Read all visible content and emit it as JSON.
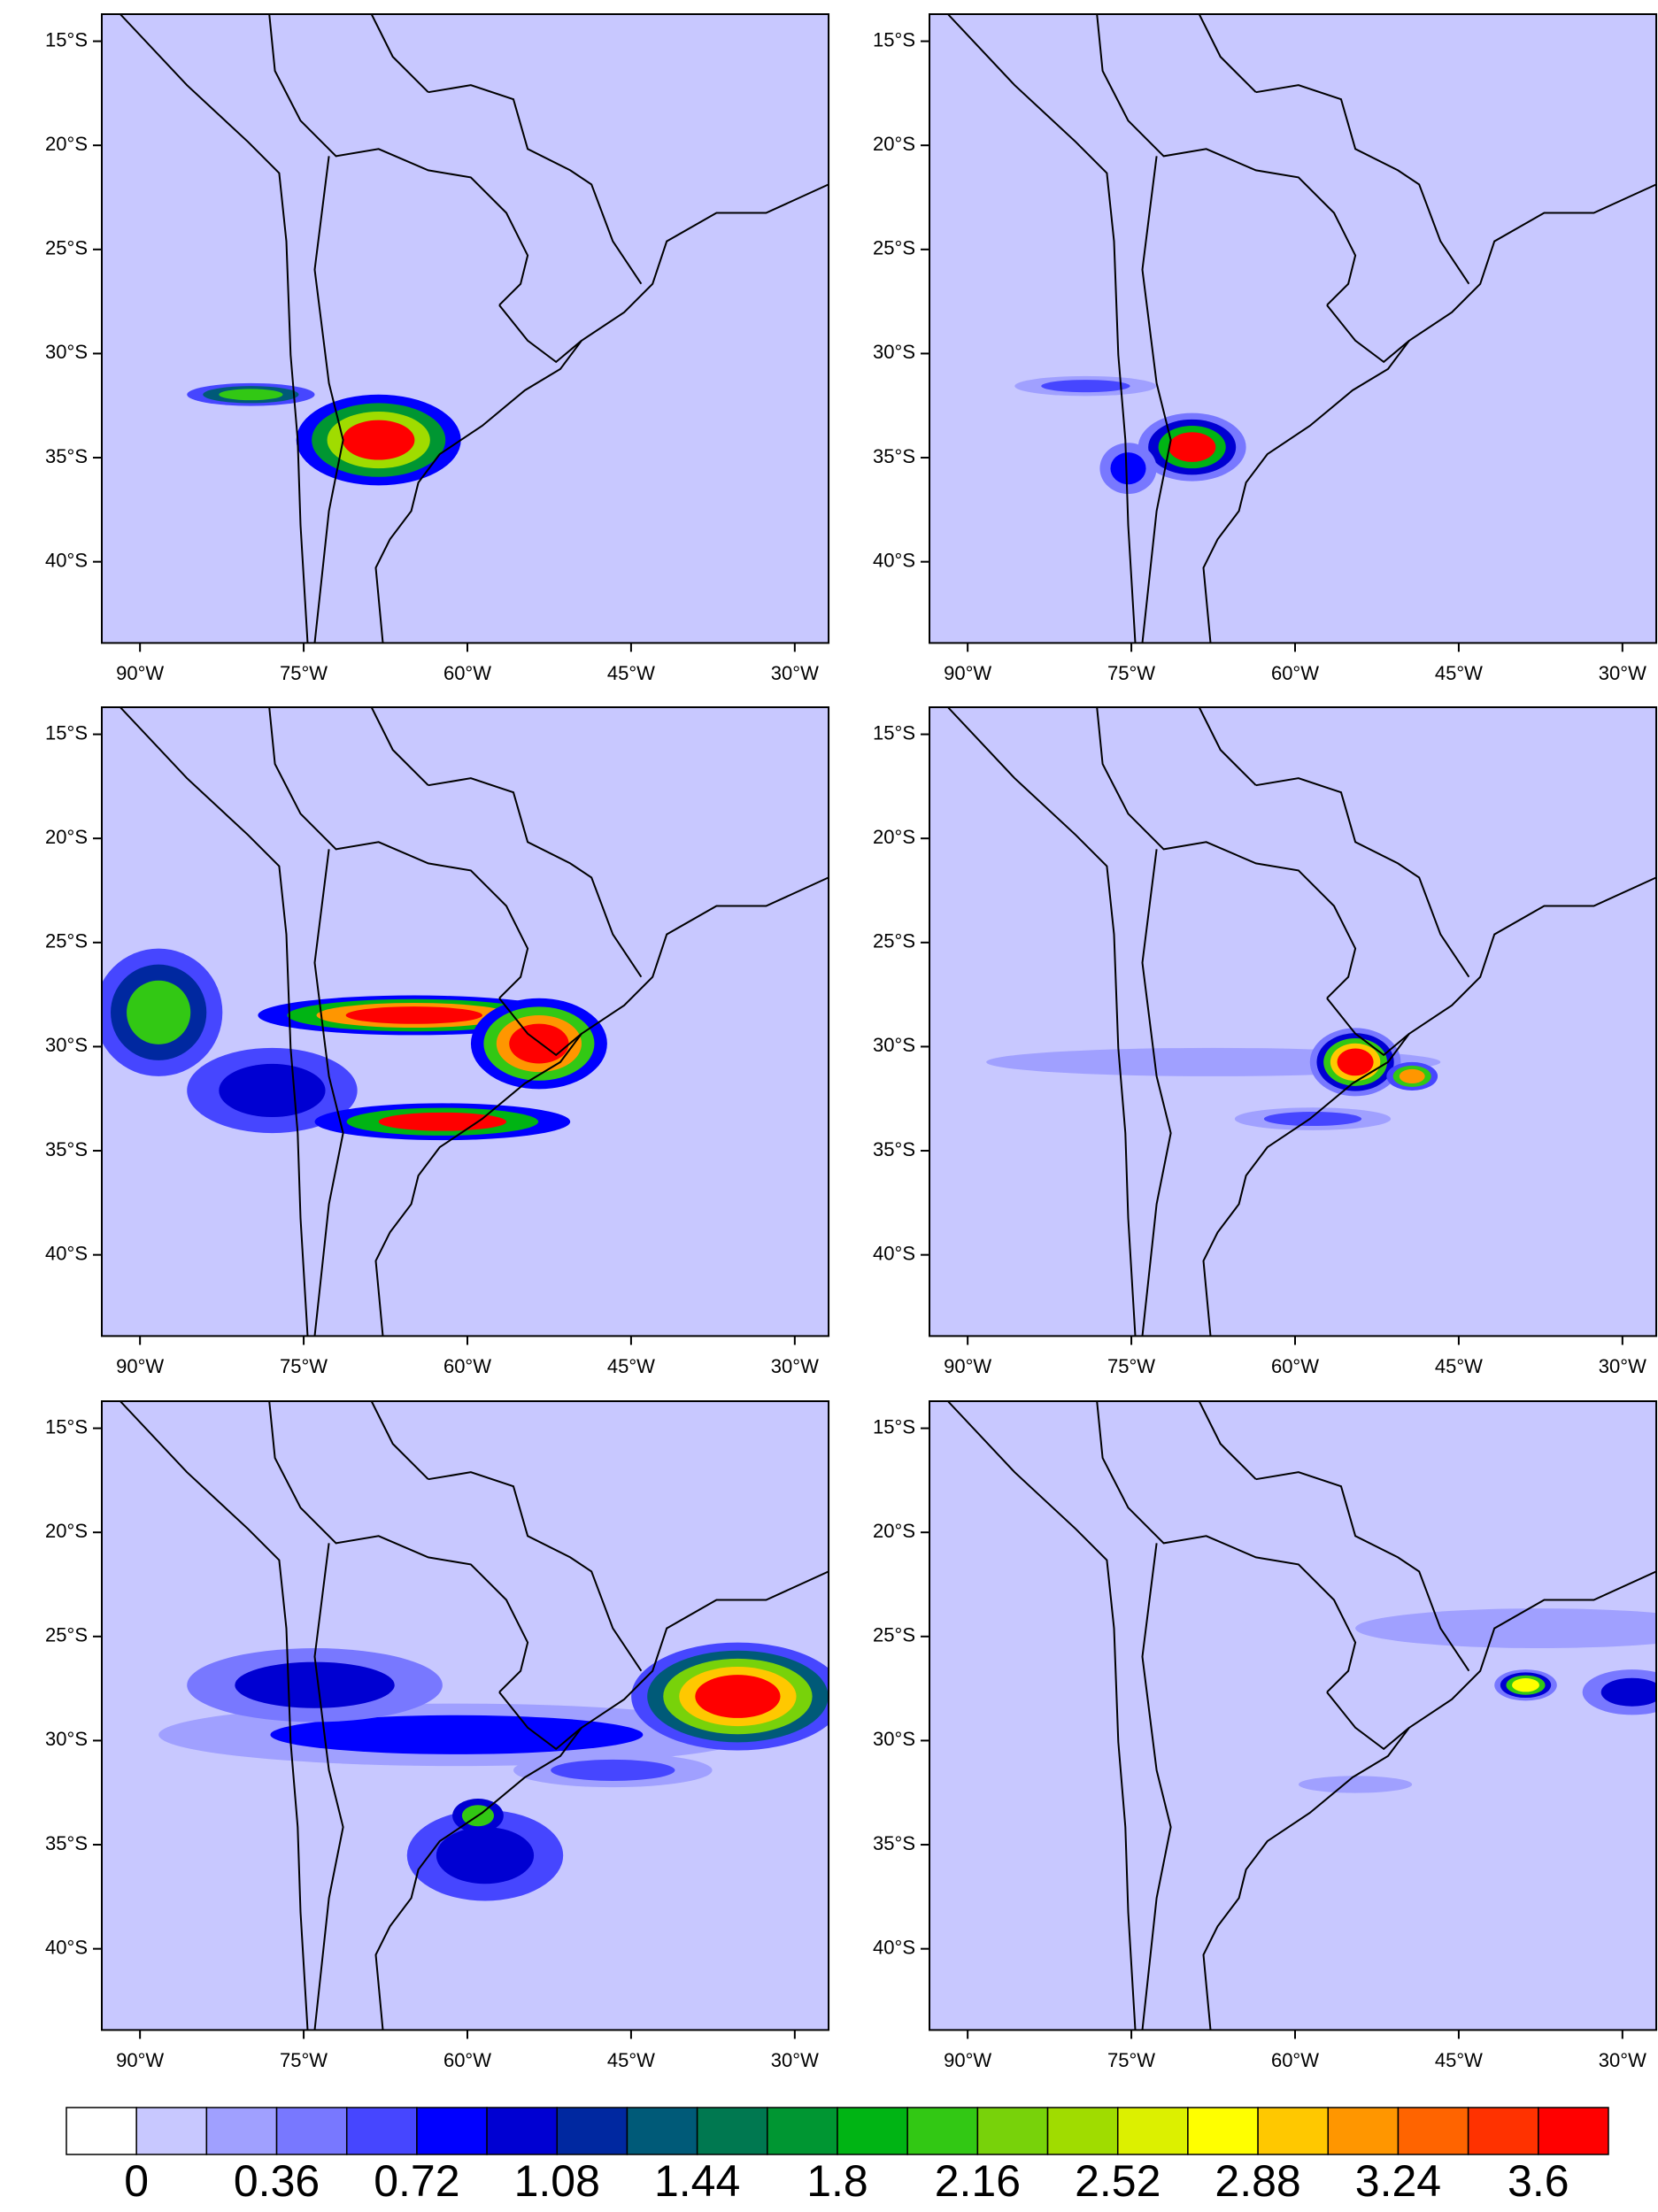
{
  "map": {
    "lat_range": [
      -43.9,
      -13.7
    ],
    "lon_range": [
      -93.5,
      -26.9
    ],
    "lat_ticks": [
      {
        "value": -15,
        "label": "15°S"
      },
      {
        "value": -20,
        "label": "20°S"
      },
      {
        "value": -25,
        "label": "25°S"
      },
      {
        "value": -30,
        "label": "30°S"
      },
      {
        "value": -35,
        "label": "35°S"
      },
      {
        "value": -40,
        "label": "40°S"
      }
    ],
    "lon_ticks": [
      {
        "value": -90,
        "label": "90°W"
      },
      {
        "value": -75,
        "label": "75°W"
      },
      {
        "value": -60,
        "label": "60°W"
      },
      {
        "value": -45,
        "label": "45°W"
      },
      {
        "value": -30,
        "label": "30°W"
      }
    ]
  },
  "colorbar": {
    "colors": [
      "#ffffff",
      "#c8c8ff",
      "#a0a0ff",
      "#7878ff",
      "#4646ff",
      "#0000ff",
      "#0000d2",
      "#0028a0",
      "#005a78",
      "#007850",
      "#009632",
      "#00b414",
      "#32c814",
      "#78d20a",
      "#a0dc00",
      "#dcf000",
      "#ffff00",
      "#ffc800",
      "#ff9600",
      "#ff6400",
      "#ff3200",
      "#ff0000"
    ],
    "levels": [
      0,
      0.36,
      0.72,
      1.08,
      1.44,
      1.8,
      2.16,
      2.52,
      2.88,
      3.24,
      3.6
    ]
  }
}
